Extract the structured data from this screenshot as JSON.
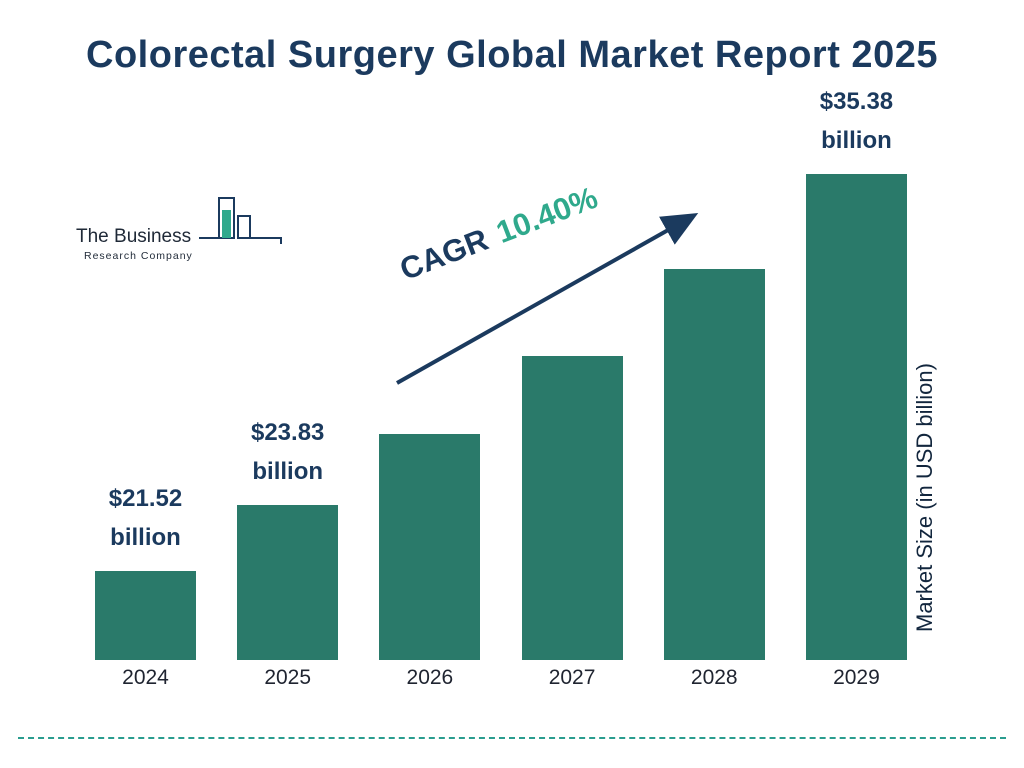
{
  "title": "Colorectal Surgery Global Market Report 2025",
  "logo": {
    "line1": "The Business",
    "line2": "Research Company"
  },
  "cagr": {
    "prefix": "CAGR",
    "value": "10.40%"
  },
  "y_axis_label": "Market Size (in USD billion)",
  "colors": {
    "bar": "#2a7a6a",
    "title_navy": "#1b3a5e",
    "cagr_green": "#2fa98c",
    "arrow_navy": "#1b3a5e",
    "dashed_line": "#2a9d8f",
    "logo_accent": "#2fa98c"
  },
  "chart_data": {
    "type": "bar",
    "title": "Colorectal Surgery Global Market Report 2025",
    "categories": [
      "2024",
      "2025",
      "2026",
      "2027",
      "2028",
      "2029"
    ],
    "values": [
      21.52,
      23.83,
      26.31,
      29.04,
      32.06,
      35.38
    ],
    "value_labels": [
      [
        "$21.52",
        "billion"
      ],
      [
        "$23.83",
        "billion"
      ],
      null,
      null,
      null,
      [
        "$35.38",
        "billion"
      ]
    ],
    "xlabel": "",
    "ylabel": "Market Size (in USD billion)",
    "ylim": [
      18.4,
      36.5
    ],
    "cagr": "10.40%",
    "legend": false,
    "grid": false
  }
}
